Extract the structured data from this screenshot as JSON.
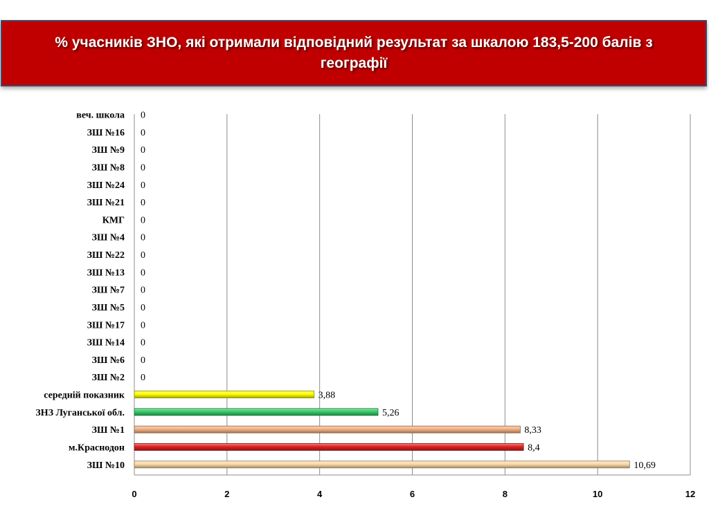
{
  "title": "% учасників ЗНО, які отримали відповідний результат за шкалою 183,5-200 балів з географії",
  "chart_data": {
    "type": "bar",
    "orientation": "horizontal",
    "xlim": [
      0,
      12
    ],
    "x_ticks": [
      "0",
      "2",
      "4",
      "6",
      "8",
      "10",
      "12"
    ],
    "grid": "vertical",
    "categories": [
      "веч. школа",
      "ЗШ №16",
      "ЗШ №9",
      "ЗШ №8",
      "ЗШ №24",
      "ЗШ №21",
      "КМГ",
      "ЗШ №4",
      "ЗШ №22",
      "ЗШ №13",
      "ЗШ №7",
      "ЗШ №5",
      "ЗШ №17",
      "ЗШ №14",
      "ЗШ №6",
      "ЗШ №2",
      "середній показник",
      "ЗНЗ Луганської обл.",
      "ЗШ №1",
      "м.Краснодон",
      "ЗШ №10"
    ],
    "values": [
      0,
      0,
      0,
      0,
      0,
      0,
      0,
      0,
      0,
      0,
      0,
      0,
      0,
      0,
      0,
      0,
      3.88,
      5.26,
      8.33,
      8.4,
      10.69
    ],
    "value_labels": [
      "0",
      "0",
      "0",
      "0",
      "0",
      "0",
      "0",
      "0",
      "0",
      "0",
      "0",
      "0",
      "0",
      "0",
      "0",
      "0",
      "3,88",
      "5,26",
      "8,33",
      "8,4",
      "10,69"
    ],
    "bar_colors": [
      "#f4b183",
      "#f4b183",
      "#f4b183",
      "#f4b183",
      "#f4b183",
      "#f4b183",
      "#f4b183",
      "#f4b183",
      "#f4b183",
      "#f4b183",
      "#f4b183",
      "#f4b183",
      "#f4b183",
      "#f4b183",
      "#f4b183",
      "#f4b183",
      "#ffff00",
      "#33cc66",
      "#f4b183",
      "#e02020",
      "#fbd9a6"
    ]
  }
}
